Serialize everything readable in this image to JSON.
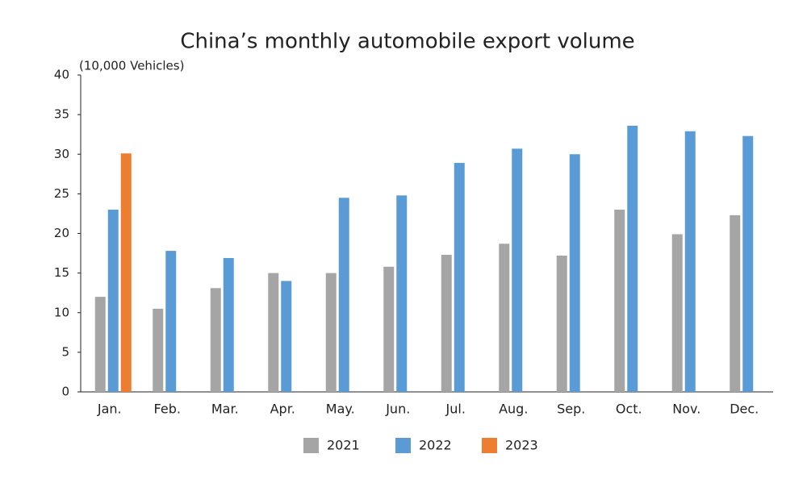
{
  "chart_data": {
    "type": "bar",
    "title": "China’s monthly automobile export volume",
    "y_label": "(10,000 Vehicles)",
    "categories": [
      "Jan.",
      "Feb.",
      "Mar.",
      "Apr.",
      "May.",
      "Jun.",
      "Jul.",
      "Aug.",
      "Sep.",
      "Oct.",
      "Nov.",
      "Dec."
    ],
    "series": [
      {
        "name": "2021",
        "color": "#a5a5a5",
        "values": [
          12,
          10.5,
          13.1,
          15,
          15,
          15.8,
          17.3,
          18.7,
          17.2,
          23,
          19.9,
          22.3
        ]
      },
      {
        "name": "2022",
        "color": "#5b9bd5",
        "values": [
          23,
          17.8,
          16.9,
          14,
          24.5,
          24.8,
          28.9,
          30.7,
          30,
          33.6,
          32.9,
          32.3
        ]
      },
      {
        "name": "2023",
        "color": "#ed7d31",
        "values": [
          30.1,
          null,
          null,
          null,
          null,
          null,
          null,
          null,
          null,
          null,
          null,
          null
        ]
      }
    ],
    "ylim": [
      0,
      40
    ],
    "yticks": [
      0,
      5,
      10,
      15,
      20,
      25,
      30,
      35,
      40
    ],
    "grid": false,
    "legend": "bottom"
  }
}
